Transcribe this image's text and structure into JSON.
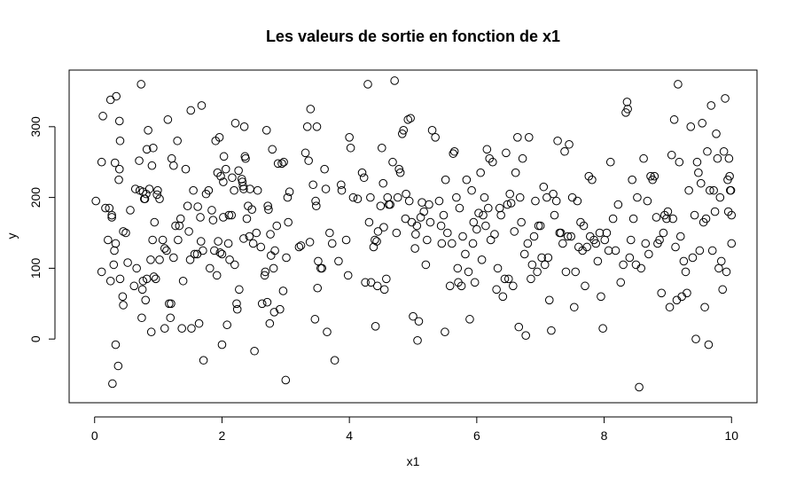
{
  "chart_data": {
    "type": "scatter",
    "title": "Les valeurs de sortie en fonction de x1",
    "xlabel": "x1",
    "ylabel": "y",
    "xlim": [
      -0.4,
      10.4
    ],
    "ylim": [
      -90,
      380
    ],
    "x_ticks": [
      0,
      2,
      4,
      6,
      8,
      10
    ],
    "y_ticks": [
      0,
      100,
      200,
      300
    ],
    "x_tick_labels": [
      "0",
      "2",
      "4",
      "6",
      "8",
      "10"
    ],
    "y_tick_labels": [
      "0",
      "100",
      "200",
      "300"
    ],
    "marker": "open-circle",
    "grid": false,
    "points": [
      [
        0.02,
        195
      ],
      [
        0.11,
        250
      ],
      [
        0.11,
        95
      ],
      [
        0.13,
        315
      ],
      [
        0.17,
        185
      ],
      [
        0.21,
        140
      ],
      [
        0.23,
        185
      ],
      [
        0.25,
        82
      ],
      [
        0.25,
        338
      ],
      [
        0.27,
        175
      ],
      [
        0.27,
        172
      ],
      [
        0.28,
        -63
      ],
      [
        0.3,
        105
      ],
      [
        0.31,
        125
      ],
      [
        0.32,
        249
      ],
      [
        0.33,
        135
      ],
      [
        0.33,
        -8
      ],
      [
        0.34,
        343
      ],
      [
        0.37,
        -38
      ],
      [
        0.38,
        225
      ],
      [
        0.39,
        240
      ],
      [
        0.39,
        308
      ],
      [
        0.4,
        280
      ],
      [
        0.4,
        85
      ],
      [
        0.44,
        60
      ],
      [
        0.45,
        152
      ],
      [
        0.45,
        48
      ],
      [
        0.49,
        150
      ],
      [
        0.52,
        108
      ],
      [
        0.56,
        182
      ],
      [
        0.62,
        75
      ],
      [
        0.64,
        212
      ],
      [
        0.66,
        100
      ],
      [
        0.7,
        252
      ],
      [
        0.71,
        210
      ],
      [
        0.73,
        360
      ],
      [
        0.74,
        30
      ],
      [
        0.75,
        70
      ],
      [
        0.76,
        82
      ],
      [
        0.76,
        208
      ],
      [
        0.78,
        198
      ],
      [
        0.79,
        198
      ],
      [
        0.8,
        55
      ],
      [
        0.81,
        205
      ],
      [
        0.82,
        268
      ],
      [
        0.82,
        85
      ],
      [
        0.84,
        295
      ],
      [
        0.86,
        212
      ],
      [
        0.88,
        112
      ],
      [
        0.89,
        10
      ],
      [
        0.9,
        245
      ],
      [
        0.91,
        140
      ],
      [
        0.92,
        270
      ],
      [
        0.93,
        88
      ],
      [
        0.94,
        165
      ],
      [
        0.96,
        85
      ],
      [
        0.98,
        204
      ],
      [
        0.99,
        210
      ],
      [
        1.02,
        112
      ],
      [
        1.02,
        198
      ],
      [
        1.07,
        140
      ],
      [
        1.1,
        15
      ],
      [
        1.1,
        128
      ],
      [
        1.13,
        125
      ],
      [
        1.15,
        310
      ],
      [
        1.17,
        50
      ],
      [
        1.19,
        30
      ],
      [
        1.2,
        50
      ],
      [
        1.21,
        255
      ],
      [
        1.24,
        245
      ],
      [
        1.24,
        115
      ],
      [
        1.27,
        160
      ],
      [
        1.3,
        280
      ],
      [
        1.31,
        140
      ],
      [
        1.33,
        160
      ],
      [
        1.35,
        170
      ],
      [
        1.37,
        15
      ],
      [
        1.39,
        82
      ],
      [
        1.43,
        240
      ],
      [
        1.46,
        188
      ],
      [
        1.48,
        152
      ],
      [
        1.5,
        112
      ],
      [
        1.51,
        323
      ],
      [
        1.52,
        15
      ],
      [
        1.55,
        210
      ],
      [
        1.57,
        120
      ],
      [
        1.61,
        120
      ],
      [
        1.62,
        187
      ],
      [
        1.64,
        22
      ],
      [
        1.66,
        172
      ],
      [
        1.67,
        138
      ],
      [
        1.68,
        330
      ],
      [
        1.7,
        125
      ],
      [
        1.71,
        -30
      ],
      [
        1.75,
        205
      ],
      [
        1.79,
        210
      ],
      [
        1.81,
        100
      ],
      [
        1.84,
        182
      ],
      [
        1.86,
        168
      ],
      [
        1.88,
        125
      ],
      [
        1.9,
        280
      ],
      [
        1.92,
        90
      ],
      [
        1.93,
        235
      ],
      [
        1.94,
        138
      ],
      [
        1.96,
        285
      ],
      [
        1.97,
        122
      ],
      [
        1.98,
        230
      ],
      [
        2.0,
        -8
      ],
      [
        2.0,
        120
      ],
      [
        2.02,
        222
      ],
      [
        2.02,
        172
      ],
      [
        2.03,
        258
      ],
      [
        2.06,
        240
      ],
      [
        2.08,
        20
      ],
      [
        2.1,
        135
      ],
      [
        2.11,
        175
      ],
      [
        2.12,
        112
      ],
      [
        2.15,
        175
      ],
      [
        2.16,
        228
      ],
      [
        2.19,
        210
      ],
      [
        2.2,
        105
      ],
      [
        2.21,
        305
      ],
      [
        2.23,
        50
      ],
      [
        2.24,
        42
      ],
      [
        2.26,
        238
      ],
      [
        2.27,
        70
      ],
      [
        2.31,
        226
      ],
      [
        2.32,
        222
      ],
      [
        2.33,
        216
      ],
      [
        2.34,
        212
      ],
      [
        2.34,
        142
      ],
      [
        2.35,
        300
      ],
      [
        2.36,
        258
      ],
      [
        2.37,
        255
      ],
      [
        2.39,
        170
      ],
      [
        2.41,
        188
      ],
      [
        2.43,
        145
      ],
      [
        2.44,
        212
      ],
      [
        2.47,
        183
      ],
      [
        2.49,
        135
      ],
      [
        2.51,
        -17
      ],
      [
        2.54,
        150
      ],
      [
        2.56,
        210
      ],
      [
        2.61,
        130
      ],
      [
        2.63,
        50
      ],
      [
        2.67,
        90
      ],
      [
        2.68,
        95
      ],
      [
        2.7,
        295
      ],
      [
        2.71,
        52
      ],
      [
        2.72,
        188
      ],
      [
        2.73,
        183
      ],
      [
        2.75,
        22
      ],
      [
        2.76,
        148
      ],
      [
        2.77,
        118
      ],
      [
        2.79,
        268
      ],
      [
        2.81,
        100
      ],
      [
        2.82,
        38
      ],
      [
        2.83,
        125
      ],
      [
        2.86,
        160
      ],
      [
        2.88,
        248
      ],
      [
        2.91,
        42
      ],
      [
        2.94,
        248
      ],
      [
        2.96,
        68
      ],
      [
        2.97,
        250
      ],
      [
        3.0,
        -58
      ],
      [
        3.01,
        115
      ],
      [
        3.03,
        200
      ],
      [
        3.04,
        165
      ],
      [
        3.06,
        208
      ],
      [
        3.21,
        130
      ],
      [
        3.24,
        132
      ],
      [
        3.31,
        263
      ],
      [
        3.34,
        300
      ],
      [
        3.36,
        252
      ],
      [
        3.38,
        137
      ],
      [
        3.39,
        325
      ],
      [
        3.43,
        218
      ],
      [
        3.46,
        28
      ],
      [
        3.47,
        195
      ],
      [
        3.48,
        188
      ],
      [
        3.49,
        300
      ],
      [
        3.5,
        72
      ],
      [
        3.51,
        110
      ],
      [
        3.55,
        100
      ],
      [
        3.57,
        100
      ],
      [
        3.61,
        240
      ],
      [
        3.63,
        212
      ],
      [
        3.65,
        10
      ],
      [
        3.69,
        150
      ],
      [
        3.73,
        135
      ],
      [
        3.77,
        -30
      ],
      [
        3.83,
        110
      ],
      [
        3.87,
        218
      ],
      [
        3.88,
        210
      ],
      [
        3.95,
        140
      ],
      [
        3.98,
        90
      ],
      [
        4.0,
        285
      ],
      [
        4.02,
        270
      ],
      [
        4.06,
        200
      ],
      [
        4.13,
        198
      ],
      [
        4.2,
        235
      ],
      [
        4.23,
        228
      ],
      [
        4.25,
        80
      ],
      [
        4.29,
        360
      ],
      [
        4.31,
        165
      ],
      [
        4.33,
        200
      ],
      [
        4.34,
        80
      ],
      [
        4.38,
        130
      ],
      [
        4.4,
        140
      ],
      [
        4.41,
        18
      ],
      [
        4.43,
        138
      ],
      [
        4.44,
        75
      ],
      [
        4.45,
        152
      ],
      [
        4.49,
        188
      ],
      [
        4.51,
        270
      ],
      [
        4.53,
        220
      ],
      [
        4.54,
        158
      ],
      [
        4.55,
        70
      ],
      [
        4.58,
        85
      ],
      [
        4.6,
        200
      ],
      [
        4.62,
        190
      ],
      [
        4.64,
        190
      ],
      [
        4.68,
        250
      ],
      [
        4.71,
        365
      ],
      [
        4.74,
        150
      ],
      [
        4.76,
        200
      ],
      [
        4.78,
        240
      ],
      [
        4.8,
        235
      ],
      [
        4.83,
        290
      ],
      [
        4.85,
        295
      ],
      [
        4.88,
        170
      ],
      [
        4.89,
        205
      ],
      [
        4.92,
        310
      ],
      [
        4.94,
        195
      ],
      [
        4.96,
        312
      ],
      [
        4.98,
        165
      ],
      [
        5.0,
        32
      ],
      [
        5.03,
        128
      ],
      [
        5.04,
        148
      ],
      [
        5.06,
        160
      ],
      [
        5.07,
        -2
      ],
      [
        5.09,
        25
      ],
      [
        5.12,
        172
      ],
      [
        5.14,
        193
      ],
      [
        5.17,
        180
      ],
      [
        5.2,
        105
      ],
      [
        5.22,
        140
      ],
      [
        5.25,
        190
      ],
      [
        5.27,
        165
      ],
      [
        5.3,
        295
      ],
      [
        5.35,
        285
      ],
      [
        5.41,
        195
      ],
      [
        5.44,
        160
      ],
      [
        5.45,
        135
      ],
      [
        5.48,
        175
      ],
      [
        5.5,
        10
      ],
      [
        5.51,
        225
      ],
      [
        5.54,
        150
      ],
      [
        5.58,
        75
      ],
      [
        5.61,
        135
      ],
      [
        5.63,
        262
      ],
      [
        5.65,
        265
      ],
      [
        5.68,
        200
      ],
      [
        5.7,
        100
      ],
      [
        5.71,
        80
      ],
      [
        5.73,
        185
      ],
      [
        5.76,
        75
      ],
      [
        5.78,
        145
      ],
      [
        5.82,
        120
      ],
      [
        5.84,
        225
      ],
      [
        5.87,
        95
      ],
      [
        5.89,
        28
      ],
      [
        5.92,
        210
      ],
      [
        5.94,
        135
      ],
      [
        5.95,
        165
      ],
      [
        5.97,
        80
      ],
      [
        6.0,
        155
      ],
      [
        6.03,
        178
      ],
      [
        6.06,
        235
      ],
      [
        6.08,
        112
      ],
      [
        6.1,
        175
      ],
      [
        6.12,
        200
      ],
      [
        6.14,
        160
      ],
      [
        6.16,
        268
      ],
      [
        6.18,
        185
      ],
      [
        6.2,
        255
      ],
      [
        6.22,
        140
      ],
      [
        6.25,
        250
      ],
      [
        6.28,
        148
      ],
      [
        6.31,
        70
      ],
      [
        6.33,
        100
      ],
      [
        6.36,
        185
      ],
      [
        6.38,
        175
      ],
      [
        6.41,
        60
      ],
      [
        6.44,
        85
      ],
      [
        6.46,
        263
      ],
      [
        6.48,
        190
      ],
      [
        6.5,
        85
      ],
      [
        6.52,
        205
      ],
      [
        6.54,
        192
      ],
      [
        6.57,
        75
      ],
      [
        6.59,
        152
      ],
      [
        6.61,
        235
      ],
      [
        6.64,
        285
      ],
      [
        6.66,
        17
      ],
      [
        6.68,
        200
      ],
      [
        6.7,
        165
      ],
      [
        6.72,
        255
      ],
      [
        6.75,
        120
      ],
      [
        6.77,
        5
      ],
      [
        6.8,
        135
      ],
      [
        6.82,
        285
      ],
      [
        6.85,
        85
      ],
      [
        6.87,
        105
      ],
      [
        6.9,
        145
      ],
      [
        6.92,
        195
      ],
      [
        6.95,
        95
      ],
      [
        6.97,
        160
      ],
      [
        7.0,
        160
      ],
      [
        7.02,
        115
      ],
      [
        7.05,
        215
      ],
      [
        7.07,
        105
      ],
      [
        7.1,
        200
      ],
      [
        7.12,
        115
      ],
      [
        7.14,
        55
      ],
      [
        7.17,
        12
      ],
      [
        7.2,
        205
      ],
      [
        7.22,
        175
      ],
      [
        7.25,
        195
      ],
      [
        7.27,
        280
      ],
      [
        7.3,
        150
      ],
      [
        7.32,
        150
      ],
      [
        7.35,
        135
      ],
      [
        7.38,
        265
      ],
      [
        7.4,
        95
      ],
      [
        7.43,
        145
      ],
      [
        7.45,
        275
      ],
      [
        7.48,
        145
      ],
      [
        7.5,
        200
      ],
      [
        7.53,
        45
      ],
      [
        7.55,
        95
      ],
      [
        7.58,
        195
      ],
      [
        7.6,
        130
      ],
      [
        7.63,
        165
      ],
      [
        7.66,
        125
      ],
      [
        7.68,
        160
      ],
      [
        7.7,
        75
      ],
      [
        7.73,
        130
      ],
      [
        7.76,
        230
      ],
      [
        7.78,
        145
      ],
      [
        7.81,
        225
      ],
      [
        7.84,
        140
      ],
      [
        7.87,
        135
      ],
      [
        7.9,
        110
      ],
      [
        7.93,
        150
      ],
      [
        7.95,
        60
      ],
      [
        7.98,
        15
      ],
      [
        8.01,
        140
      ],
      [
        8.04,
        150
      ],
      [
        8.07,
        125
      ],
      [
        8.1,
        250
      ],
      [
        8.14,
        170
      ],
      [
        8.18,
        125
      ],
      [
        8.22,
        190
      ],
      [
        8.26,
        80
      ],
      [
        8.3,
        105
      ],
      [
        8.34,
        320
      ],
      [
        8.36,
        335
      ],
      [
        8.37,
        325
      ],
      [
        8.4,
        115
      ],
      [
        8.42,
        140
      ],
      [
        8.44,
        225
      ],
      [
        8.46,
        170
      ],
      [
        8.5,
        105
      ],
      [
        8.52,
        200
      ],
      [
        8.55,
        -68
      ],
      [
        8.58,
        100
      ],
      [
        8.62,
        255
      ],
      [
        8.65,
        135
      ],
      [
        8.68,
        195
      ],
      [
        8.7,
        120
      ],
      [
        8.73,
        230
      ],
      [
        8.76,
        225
      ],
      [
        8.79,
        230
      ],
      [
        8.82,
        172
      ],
      [
        8.84,
        135
      ],
      [
        8.87,
        140
      ],
      [
        8.9,
        65
      ],
      [
        8.93,
        150
      ],
      [
        8.95,
        175
      ],
      [
        8.98,
        170
      ],
      [
        9.0,
        180
      ],
      [
        9.03,
        45
      ],
      [
        9.06,
        260
      ],
      [
        9.08,
        170
      ],
      [
        9.1,
        310
      ],
      [
        9.12,
        130
      ],
      [
        9.14,
        55
      ],
      [
        9.16,
        360
      ],
      [
        9.18,
        250
      ],
      [
        9.2,
        145
      ],
      [
        9.22,
        60
      ],
      [
        9.25,
        110
      ],
      [
        9.28,
        95
      ],
      [
        9.3,
        65
      ],
      [
        9.33,
        210
      ],
      [
        9.36,
        300
      ],
      [
        9.39,
        115
      ],
      [
        9.42,
        175
      ],
      [
        9.44,
        0
      ],
      [
        9.46,
        250
      ],
      [
        9.48,
        235
      ],
      [
        9.5,
        125
      ],
      [
        9.52,
        220
      ],
      [
        9.54,
        305
      ],
      [
        9.56,
        165
      ],
      [
        9.58,
        45
      ],
      [
        9.6,
        170
      ],
      [
        9.62,
        265
      ],
      [
        9.64,
        -8
      ],
      [
        9.66,
        210
      ],
      [
        9.68,
        330
      ],
      [
        9.7,
        125
      ],
      [
        9.72,
        210
      ],
      [
        9.74,
        180
      ],
      [
        9.76,
        290
      ],
      [
        9.78,
        255
      ],
      [
        9.8,
        100
      ],
      [
        9.82,
        200
      ],
      [
        9.84,
        110
      ],
      [
        9.86,
        70
      ],
      [
        9.88,
        265
      ],
      [
        9.9,
        340
      ],
      [
        9.92,
        95
      ],
      [
        9.94,
        225
      ],
      [
        9.95,
        180
      ],
      [
        9.96,
        255
      ],
      [
        9.97,
        230
      ],
      [
        9.98,
        210
      ],
      [
        9.99,
        210
      ],
      [
        10.0,
        175
      ],
      [
        10.0,
        135
      ]
    ]
  }
}
